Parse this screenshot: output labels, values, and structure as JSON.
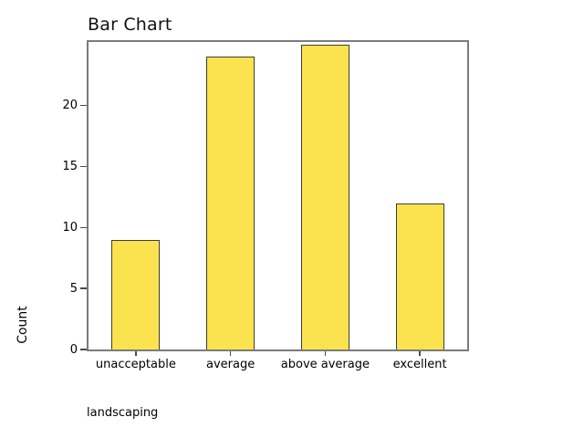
{
  "title": "Bar Chart",
  "chart_data": {
    "type": "bar",
    "title": "Bar Chart",
    "categories": [
      "unacceptable",
      "average",
      "above average",
      "excellent"
    ],
    "values": [
      9,
      24,
      25,
      12
    ],
    "xlabel": "landscaping",
    "ylabel": "Count",
    "ylim": [
      0,
      25.2
    ],
    "yticks": [
      0,
      5,
      10,
      15,
      20
    ],
    "legend": null,
    "grid": false,
    "bar_color": "#FAE34E",
    "bar_border_color": "#3F3D34",
    "frame_color": "#7B7B7B",
    "background_color": "#FFFFFF",
    "text_color": "#000000"
  }
}
